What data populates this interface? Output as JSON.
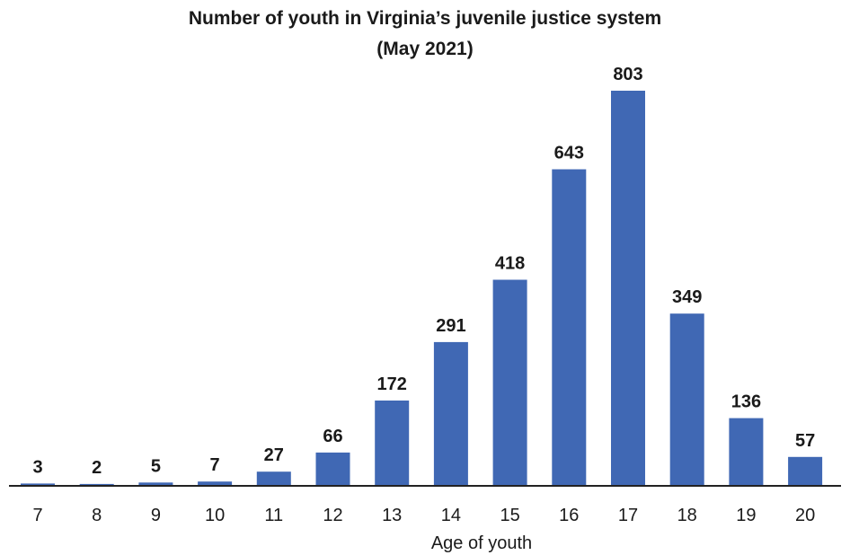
{
  "chart_data": {
    "type": "bar",
    "title": "Number of youth in Virginia’s juvenile justice system",
    "subtitle": "(May 2021)",
    "xlabel": "Age of youth",
    "ylabel": "",
    "categories": [
      "7",
      "8",
      "9",
      "10",
      "11",
      "12",
      "13",
      "14",
      "15",
      "16",
      "17",
      "18",
      "19",
      "20"
    ],
    "values": [
      3,
      2,
      5,
      7,
      27,
      66,
      172,
      291,
      418,
      643,
      803,
      349,
      136,
      57
    ],
    "ylim": [
      0,
      803
    ],
    "bar_color": "#4068B4",
    "data_labels": true,
    "grid": false,
    "legend": "none"
  }
}
